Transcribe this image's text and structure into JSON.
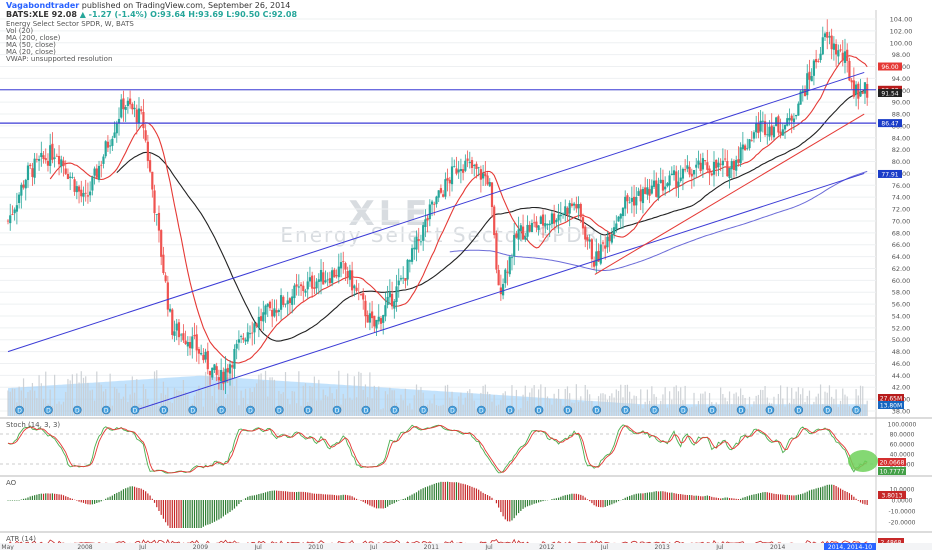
{
  "header": {
    "publisher": "Vagabondtrader",
    "publish_text": "published on TradingView.com, September 26, 2014",
    "ticker": "BATS:XLE",
    "last": "92.08",
    "change": "▲ -1.27 (-1.4%)",
    "open": "O:93.64",
    "high": "H:93.69",
    "low": "L:90.50",
    "close": "C:92.08"
  },
  "indicators_main": [
    "Energy Select Sector SPDR, W, BATS",
    "Vol (20)",
    "MA (200, close)",
    "MA (50, close)",
    "MA (20, close)",
    "VWAP: unsupported resolution"
  ],
  "watermark": {
    "ticker": "XLE",
    "name": "Energy Select Sector SPDR"
  },
  "sub_labels": {
    "stoch": "Stoch (14, 3, 3)",
    "ao": "AO",
    "atr": "ATR (14)"
  },
  "price_axis": [
    "104.00",
    "102.00",
    "100.00",
    "98.00",
    "96.00",
    "94.00",
    "92.00",
    "90.00",
    "88.00",
    "86.00",
    "84.00",
    "82.00",
    "80.00",
    "78.00",
    "76.00",
    "74.00",
    "72.00",
    "70.00",
    "68.00",
    "66.00",
    "64.00",
    "62.00",
    "60.00",
    "58.00",
    "56.00",
    "54.00",
    "52.00",
    "50.00",
    "48.00",
    "46.00",
    "44.00",
    "42.00",
    "40.00",
    "38.00"
  ],
  "price_tags": [
    {
      "text": "96.00",
      "color": "#e53935",
      "price": 96.0
    },
    {
      "text": "92.08",
      "color": "#b71c1c",
      "price": 92.08
    },
    {
      "text": "91.54",
      "color": "#222222",
      "price": 91.54
    },
    {
      "text": "86.47",
      "color": "#1a3cc8",
      "price": 86.47
    },
    {
      "text": "77.91",
      "color": "#1a3cc8",
      "price": 77.91
    }
  ],
  "volume_tags": [
    "27.65M",
    "13.80M"
  ],
  "stoch_axis": [
    "100.0000",
    "80.0000",
    "60.0000",
    "40.0000",
    "20.0000"
  ],
  "stoch_tags": [
    {
      "text": "20.0668",
      "color": "#d32f2f"
    },
    {
      "text": "10.7777",
      "color": "#43a047"
    }
  ],
  "ao_axis": [
    "10.0000",
    "0.0000",
    "-10.0000",
    "-20.0000"
  ],
  "ao_tag": "3.8013",
  "atr_tag": "2.4868",
  "time_axis": [
    "May",
    "2008",
    "Jul",
    "2009",
    "Jul",
    "2010",
    "Jul",
    "2011",
    "Jul",
    "2012",
    "Jul",
    "2013",
    "Jul",
    "2014"
  ],
  "time_tag": "2014, 2014-10",
  "colors": {
    "up": "#26a69a",
    "down": "#ef5350",
    "channel": "#3b3bd6",
    "ma20": "#e53935",
    "ma50": "#222222",
    "ma200": "#6c6cd8",
    "volume_area": "#90caf9",
    "stoch_k": "#4caf50",
    "stoch_d": "#e53935",
    "ao_up": "#2e7d32",
    "ao_down": "#c62828",
    "highlight": "#6fd15b"
  },
  "chart_data": {
    "type": "candlestick",
    "title": "Energy Select Sector SPDR, W, BATS",
    "symbol": "BATS:XLE",
    "interval": "W",
    "y_range": [
      38,
      104
    ],
    "x_range": [
      "2007-05",
      "2014-10"
    ],
    "key_levels": {
      "resistance": 92.08,
      "support": 86.47,
      "channel_bottom": 77.91
    },
    "price_path": [
      {
        "date": "2007-05",
        "close": 70
      },
      {
        "date": "2007-07",
        "close": 78
      },
      {
        "date": "2007-10",
        "close": 82
      },
      {
        "date": "2008-01",
        "close": 73
      },
      {
        "date": "2008-05",
        "close": 90
      },
      {
        "date": "2008-07",
        "close": 87
      },
      {
        "date": "2008-10",
        "close": 52
      },
      {
        "date": "2008-12",
        "close": 50
      },
      {
        "date": "2009-03",
        "close": 43
      },
      {
        "date": "2009-06",
        "close": 52
      },
      {
        "date": "2009-10",
        "close": 57
      },
      {
        "date": "2010-01",
        "close": 60
      },
      {
        "date": "2010-04",
        "close": 62
      },
      {
        "date": "2010-07",
        "close": 52
      },
      {
        "date": "2010-10",
        "close": 60
      },
      {
        "date": "2011-01",
        "close": 72
      },
      {
        "date": "2011-04",
        "close": 80
      },
      {
        "date": "2011-07",
        "close": 77
      },
      {
        "date": "2011-08",
        "close": 58
      },
      {
        "date": "2011-10",
        "close": 68
      },
      {
        "date": "2012-01",
        "close": 70
      },
      {
        "date": "2012-04",
        "close": 73
      },
      {
        "date": "2012-06",
        "close": 63
      },
      {
        "date": "2012-09",
        "close": 73
      },
      {
        "date": "2013-01",
        "close": 76
      },
      {
        "date": "2013-05",
        "close": 79
      },
      {
        "date": "2013-08",
        "close": 79
      },
      {
        "date": "2013-11",
        "close": 86
      },
      {
        "date": "2014-02",
        "close": 86
      },
      {
        "date": "2014-04",
        "close": 93
      },
      {
        "date": "2014-06",
        "close": 101
      },
      {
        "date": "2014-08",
        "close": 97
      },
      {
        "date": "2014-09",
        "close": 92
      }
    ]
  }
}
